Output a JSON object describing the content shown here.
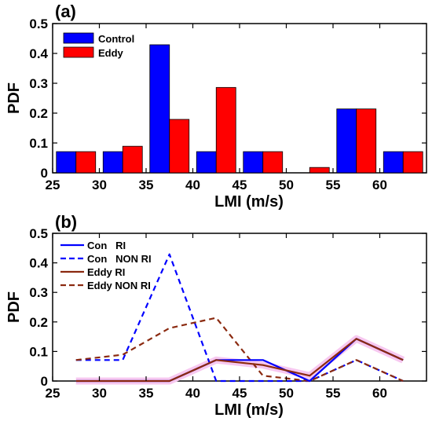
{
  "colors": {
    "control": "#0000ff",
    "eddy": "#ff0000",
    "con_line": "#0000ff",
    "eddy_line": "#8b2a10",
    "eddy_ri_glow": "#f7c8f0"
  },
  "chart_data": [
    {
      "panel_label": "(a)",
      "type": "bar",
      "xlabel": "LMI (m/s)",
      "ylabel": "PDF",
      "xlim": [
        25,
        65
      ],
      "ylim": [
        0,
        0.5
      ],
      "xticks": [
        25,
        30,
        35,
        40,
        45,
        50,
        55,
        60
      ],
      "yticks": [
        0,
        0.1,
        0.2,
        0.3,
        0.4,
        0.5
      ],
      "ytick_labels": [
        "0",
        "0.1",
        "0.2",
        "0.3",
        "0.4",
        "0.5"
      ],
      "bins": [
        [
          25,
          30
        ],
        [
          30,
          35
        ],
        [
          35,
          40
        ],
        [
          40,
          45
        ],
        [
          45,
          50
        ],
        [
          50,
          55
        ],
        [
          55,
          60
        ],
        [
          60,
          65
        ]
      ],
      "series": [
        {
          "name": "Control",
          "color": "#0000ff",
          "values": [
            0.071,
            0.071,
            0.429,
            0.071,
            0.071,
            0.0,
            0.214,
            0.071
          ]
        },
        {
          "name": "Eddy",
          "color": "#ff0000",
          "values": [
            0.071,
            0.089,
            0.179,
            0.286,
            0.071,
            0.018,
            0.214,
            0.071
          ]
        }
      ],
      "legend_position": "top-left"
    },
    {
      "panel_label": "(b)",
      "type": "line",
      "xlabel": "LMI (m/s)",
      "ylabel": "PDF",
      "xlim": [
        25,
        65
      ],
      "ylim": [
        0,
        0.5
      ],
      "xticks": [
        25,
        30,
        35,
        40,
        45,
        50,
        55,
        60
      ],
      "yticks": [
        0,
        0.1,
        0.2,
        0.3,
        0.4,
        0.5
      ],
      "ytick_labels": [
        "0",
        "0.1",
        "0.2",
        "0.3",
        "0.4",
        "0.5"
      ],
      "x": [
        27.5,
        32.5,
        37.5,
        42.5,
        47.5,
        52.5,
        57.5,
        62.5
      ],
      "series": [
        {
          "name": "Con   RI",
          "color": "#0000ff",
          "dash": "solid",
          "values": [
            0.0,
            0.0,
            0.0,
            0.071,
            0.071,
            0.0,
            0.143,
            0.071
          ]
        },
        {
          "name": "Con   NON RI",
          "color": "#0000ff",
          "dash": "dashed",
          "values": [
            0.071,
            0.071,
            0.429,
            0.0,
            0.0,
            0.0,
            0.071,
            0.0
          ]
        },
        {
          "name": "Eddy RI",
          "color": "#8b2a10",
          "dash": "solid",
          "values": [
            0.0,
            0.0,
            0.0,
            0.071,
            0.054,
            0.018,
            0.143,
            0.071
          ]
        },
        {
          "name": "Eddy NON RI",
          "color": "#8b2a10",
          "dash": "dashed",
          "values": [
            0.071,
            0.089,
            0.179,
            0.214,
            0.018,
            0.0,
            0.071,
            0.0
          ]
        }
      ],
      "legend_position": "top-left"
    }
  ]
}
